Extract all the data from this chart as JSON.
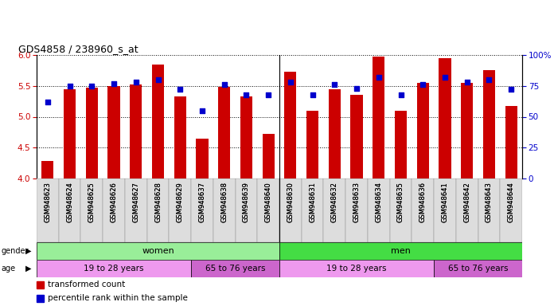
{
  "title": "GDS4858 / 238960_s_at",
  "samples": [
    "GSM948623",
    "GSM948624",
    "GSM948625",
    "GSM948626",
    "GSM948627",
    "GSM948628",
    "GSM948629",
    "GSM948637",
    "GSM948638",
    "GSM948639",
    "GSM948640",
    "GSM948630",
    "GSM948631",
    "GSM948632",
    "GSM948633",
    "GSM948634",
    "GSM948635",
    "GSM948636",
    "GSM948641",
    "GSM948642",
    "GSM948643",
    "GSM948644"
  ],
  "bar_values": [
    4.28,
    5.45,
    5.47,
    5.5,
    5.52,
    5.84,
    5.33,
    4.65,
    5.48,
    5.33,
    4.72,
    5.73,
    5.1,
    5.45,
    5.36,
    5.98,
    5.1,
    5.55,
    5.95,
    5.55,
    5.75,
    5.18
  ],
  "blue_values": [
    62,
    75,
    75,
    77,
    78,
    80,
    72,
    55,
    76,
    68,
    68,
    78,
    68,
    76,
    73,
    82,
    68,
    76,
    82,
    78,
    80,
    72
  ],
  "ylim_left": [
    4.0,
    6.0
  ],
  "ylim_right": [
    0,
    100
  ],
  "yticks_left": [
    4.0,
    4.5,
    5.0,
    5.5,
    6.0
  ],
  "yticks_right": [
    0,
    25,
    50,
    75,
    100
  ],
  "bar_color": "#cc0000",
  "blue_color": "#0000cc",
  "bar_bottom": 4.0,
  "gender_groups": [
    {
      "label": "women",
      "start": 0,
      "end": 11,
      "color": "#99ee99"
    },
    {
      "label": "men",
      "start": 11,
      "end": 22,
      "color": "#44dd44"
    }
  ],
  "age_groups": [
    {
      "label": "19 to 28 years",
      "start": 0,
      "end": 7,
      "color": "#ee99ee"
    },
    {
      "label": "65 to 76 years",
      "start": 7,
      "end": 11,
      "color": "#cc66cc"
    },
    {
      "label": "19 to 28 years",
      "start": 11,
      "end": 18,
      "color": "#ee99ee"
    },
    {
      "label": "65 to 76 years",
      "start": 18,
      "end": 22,
      "color": "#cc66cc"
    }
  ]
}
